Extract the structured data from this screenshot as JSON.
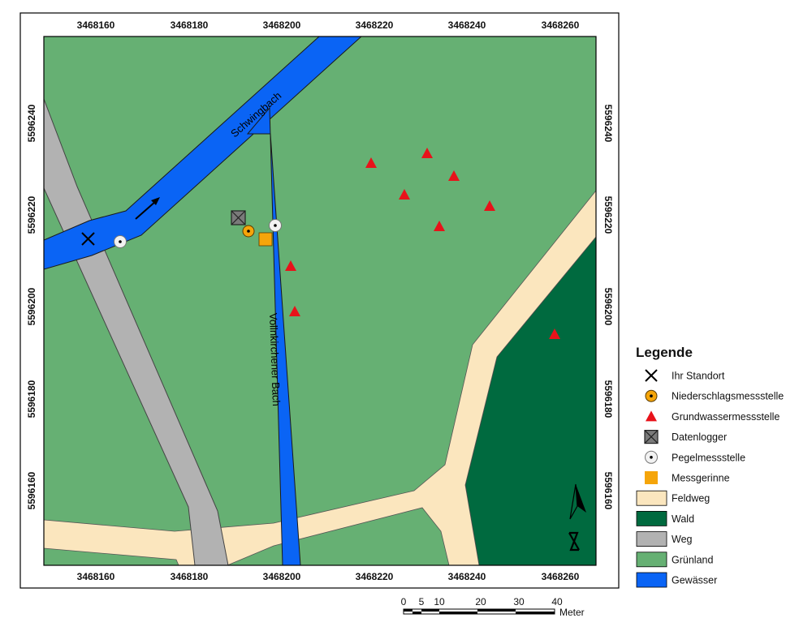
{
  "map": {
    "x_ticks": [
      "3468160",
      "3468180",
      "3468200",
      "3468220",
      "3468240",
      "3468260"
    ],
    "y_ticks": [
      "5596240",
      "5596220",
      "5596200",
      "5596180",
      "5596160"
    ],
    "rivers": [
      {
        "id": "schwingbach",
        "label": "Schwingbach"
      },
      {
        "id": "vollnkirchener",
        "label": "Vollnkirchener Bach"
      }
    ],
    "colors": {
      "gruenland": "#66b073",
      "wald": "#006a3f",
      "weg": "#b2b2b2",
      "feldweg": "#fbe6be",
      "gewaesser": "#0a64f5",
      "grundwasser": "#e8121a",
      "messgerinne": "#f5a50a",
      "niederschlag": "#f5a50a",
      "datenlogger": "#7a7a7a"
    },
    "markers": {
      "standort": {
        "symbol": "x-cross-icon"
      },
      "pegel": {
        "symbol": "target-circle-icon",
        "count": 2
      },
      "grundwasser": {
        "symbol": "triangle-icon",
        "count": 9
      }
    }
  },
  "legend": {
    "title": "Legende",
    "items": [
      {
        "label": "Ihr Standort",
        "symbol": "x-cross-icon"
      },
      {
        "label": "Niederschlagsmessstelle",
        "symbol": "dot-circle-icon"
      },
      {
        "label": "Grundwassermessstelle",
        "symbol": "triangle-icon"
      },
      {
        "label": "Datenlogger",
        "symbol": "crossed-box-icon"
      },
      {
        "label": "Pegelmessstelle",
        "symbol": "target-circle-icon"
      },
      {
        "label": "Messgerinne",
        "symbol": "square-icon"
      },
      {
        "label": "Feldweg",
        "symbol": "color-patch"
      },
      {
        "label": "Wald",
        "symbol": "color-patch"
      },
      {
        "label": "Weg",
        "symbol": "color-patch"
      },
      {
        "label": "Grünland",
        "symbol": "color-patch"
      },
      {
        "label": "Gewässer",
        "symbol": "color-patch"
      }
    ]
  },
  "scale_bar": {
    "labels": [
      "0",
      "5",
      "10",
      "20",
      "30",
      "40"
    ],
    "unit": "Meter"
  },
  "north_arrow": {
    "letter": "N"
  }
}
